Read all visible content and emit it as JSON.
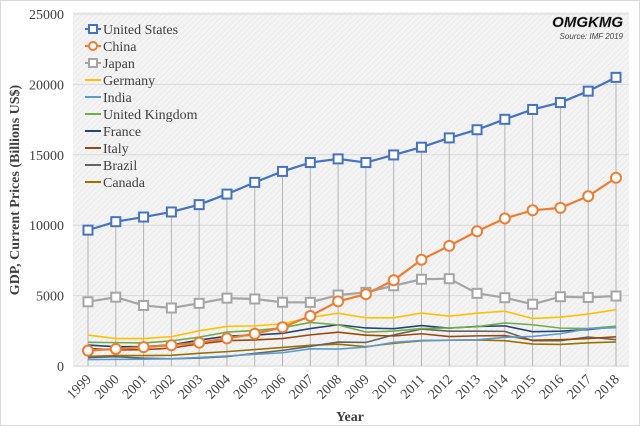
{
  "chart_data": {
    "type": "line",
    "title": "",
    "xlabel": "Year",
    "ylabel": "GDP, Current Prices (Billions US$)",
    "ylim": [
      0,
      25000
    ],
    "yticks": [
      0,
      5000,
      10000,
      15000,
      20000,
      25000
    ],
    "grid": true,
    "legend_position": "top-left",
    "x": [
      "1999",
      "2000",
      "2001",
      "2002",
      "2003",
      "2004",
      "2005",
      "2006",
      "2007",
      "2008",
      "2009",
      "2010",
      "2011",
      "2012",
      "2013",
      "2014",
      "2015",
      "2016",
      "2017",
      "2018"
    ],
    "series": [
      {
        "name": "United States",
        "color": "#4472c4",
        "marker": "square",
        "drop_lines": true,
        "values": [
          9650,
          10250,
          10580,
          10940,
          11460,
          12210,
          13040,
          13820,
          14450,
          14710,
          14450,
          14990,
          15540,
          16200,
          16780,
          17520,
          18220,
          18710,
          19520,
          20500
        ]
      },
      {
        "name": "China",
        "color": "#ed7d31",
        "marker": "circle",
        "drop_lines": false,
        "values": [
          1090,
          1210,
          1340,
          1470,
          1660,
          1960,
          2290,
          2750,
          3550,
          4590,
          5100,
          6090,
          7550,
          8530,
          9570,
          10480,
          11060,
          11230,
          12060,
          13370
        ]
      },
      {
        "name": "Japan",
        "color": "#a5a5a5",
        "marker": "square",
        "drop_lines": false,
        "values": [
          4560,
          4890,
          4300,
          4120,
          4450,
          4820,
          4760,
          4530,
          4520,
          5040,
          5230,
          5700,
          6160,
          6200,
          5160,
          4850,
          4390,
          4920,
          4870,
          4970
        ]
      },
      {
        "name": "Germany",
        "color": "#ffc000",
        "marker": "none",
        "values": [
          2200,
          1950,
          1950,
          2080,
          2500,
          2810,
          2850,
          3000,
          3440,
          3750,
          3420,
          3420,
          3760,
          3540,
          3750,
          3890,
          3380,
          3470,
          3690,
          4000
        ]
      },
      {
        "name": "India",
        "color": "#5b9bd5",
        "marker": "none",
        "values": [
          460,
          470,
          480,
          510,
          610,
          710,
          830,
          940,
          1220,
          1200,
          1340,
          1680,
          1820,
          1830,
          1860,
          2040,
          2100,
          2290,
          2650,
          2720
        ]
      },
      {
        "name": "United Kingdom",
        "color": "#70ad47",
        "marker": "none",
        "values": [
          1680,
          1660,
          1640,
          1780,
          2050,
          2410,
          2520,
          2710,
          3090,
          2920,
          2410,
          2480,
          2660,
          2700,
          2790,
          3060,
          2930,
          2690,
          2660,
          2830
        ]
      },
      {
        "name": "France",
        "color": "#264478",
        "marker": "none",
        "values": [
          1490,
          1370,
          1380,
          1500,
          1840,
          2120,
          2200,
          2320,
          2660,
          2930,
          2700,
          2650,
          2870,
          2690,
          2810,
          2850,
          2440,
          2470,
          2590,
          2780
        ]
      },
      {
        "name": "Italy",
        "color": "#9e480e",
        "marker": "none",
        "values": [
          1250,
          1140,
          1160,
          1270,
          1570,
          1800,
          1850,
          1950,
          2210,
          2400,
          2190,
          2130,
          2290,
          2090,
          2140,
          2160,
          1830,
          1870,
          1950,
          2070
        ]
      },
      {
        "name": "Brazil",
        "color": "#636363",
        "marker": "none",
        "values": [
          600,
          660,
          560,
          510,
          560,
          670,
          890,
          1110,
          1400,
          1700,
          1670,
          2210,
          2620,
          2470,
          2470,
          2460,
          1800,
          1800,
          2060,
          1870
        ]
      },
      {
        "name": "Canada",
        "color": "#997300",
        "marker": "none",
        "values": [
          680,
          740,
          740,
          760,
          900,
          1020,
          1170,
          1320,
          1470,
          1550,
          1370,
          1610,
          1790,
          1830,
          1850,
          1800,
          1560,
          1530,
          1650,
          1710
        ]
      }
    ]
  },
  "watermark": {
    "brand": "OMGKMG",
    "source": "Source: IMF 2019"
  }
}
